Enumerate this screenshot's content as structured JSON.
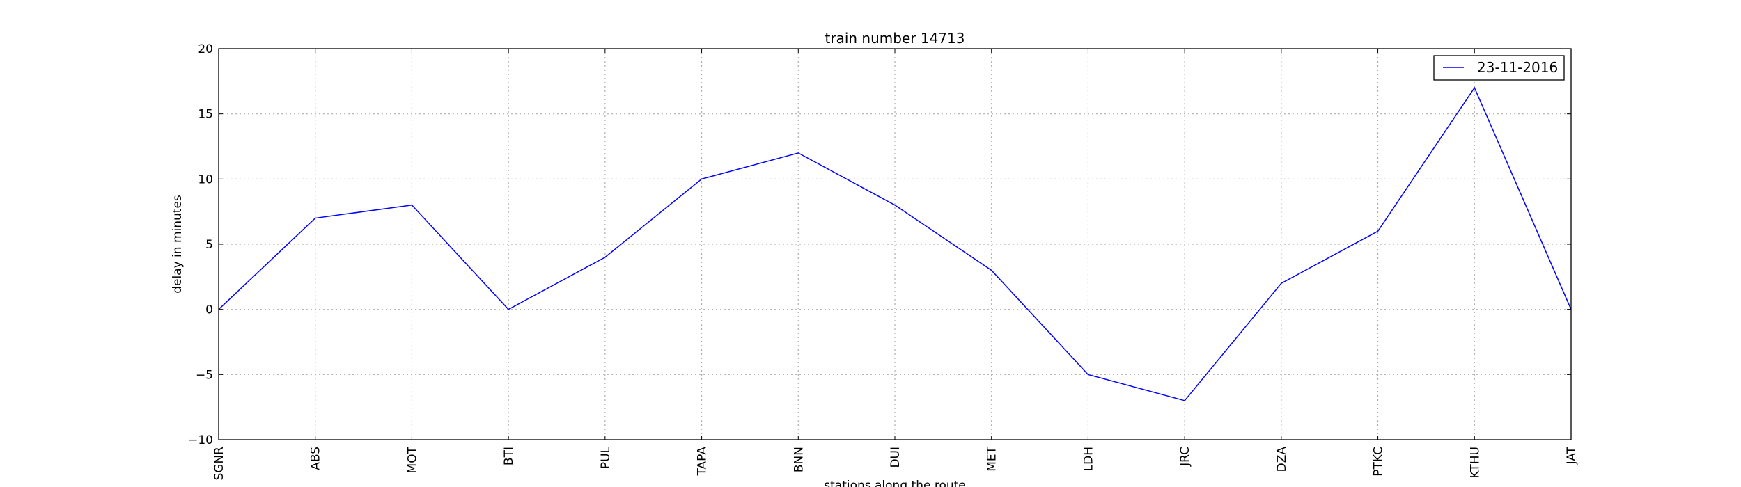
{
  "chart_data": {
    "type": "line",
    "title": "train number 14713",
    "xlabel": "stations along the route",
    "ylabel": "delay in minutes",
    "categories": [
      "SGNR",
      "ABS",
      "MOT",
      "BTI",
      "PUL",
      "TAPA",
      "BNN",
      "DUI",
      "MET",
      "LDH",
      "JRC",
      "DZA",
      "PTKC",
      "KTHU",
      "JAT"
    ],
    "series": [
      {
        "name": "23-11-2016",
        "color": "#0000ff",
        "values": [
          0,
          7,
          8,
          0,
          4,
          10,
          12,
          8,
          3,
          -5,
          -7,
          2,
          6,
          17,
          0
        ]
      }
    ],
    "ylim": [
      -10,
      20
    ],
    "yticks": [
      "−10",
      "−5",
      "0",
      "5",
      "10",
      "15",
      "20"
    ],
    "ytick_values": [
      -10,
      -5,
      0,
      5,
      10,
      15,
      20
    ],
    "grid": true,
    "legend_position": "top-right"
  }
}
